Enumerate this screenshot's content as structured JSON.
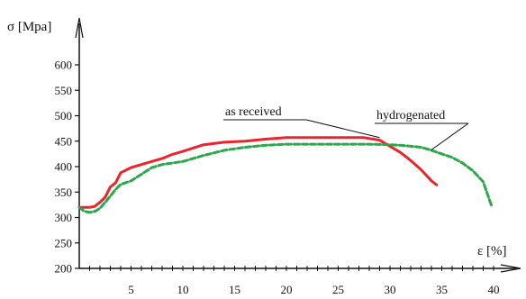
{
  "chart_data": {
    "type": "line",
    "title": "",
    "xlabel": "ε [%]",
    "ylabel": "σ [Mpa]",
    "xlim": [
      0,
      40
    ],
    "ylim": [
      200,
      630
    ],
    "x_ticks": [
      5,
      10,
      15,
      20,
      25,
      30,
      35,
      40
    ],
    "y_ticks": [
      200,
      250,
      300,
      350,
      400,
      450,
      500,
      550,
      600
    ],
    "grid": false,
    "legend": "none",
    "series": [
      {
        "name": "as received",
        "color": "#e8262b",
        "dash": "solid",
        "x": [
          0,
          1,
          1.5,
          2,
          2.5,
          3,
          3.5,
          4,
          5,
          6,
          7,
          8,
          9,
          10,
          12,
          14,
          16,
          18,
          20,
          22,
          24,
          26,
          27.5,
          29,
          30,
          31,
          32,
          33,
          34,
          34.5
        ],
        "y": [
          320,
          320,
          322,
          330,
          340,
          360,
          368,
          388,
          398,
          404,
          410,
          416,
          424,
          430,
          443,
          448,
          450,
          454,
          457,
          457,
          457,
          457,
          457,
          452,
          440,
          428,
          412,
          394,
          372,
          364
        ]
      },
      {
        "name": "hydrogenated",
        "color": "#2aa84a",
        "dash": "dashed",
        "x": [
          0,
          0.5,
          1,
          1.5,
          2,
          2.5,
          3,
          3.5,
          4,
          5,
          6,
          7,
          8,
          10,
          12,
          14,
          16,
          18,
          20,
          22,
          24,
          26,
          28,
          30,
          31,
          32,
          33,
          34,
          35,
          36,
          37,
          38,
          39,
          39.8
        ],
        "y": [
          320,
          312,
          310,
          312,
          318,
          330,
          342,
          355,
          365,
          372,
          385,
          398,
          404,
          410,
          422,
          432,
          438,
          442,
          444,
          444,
          444,
          444,
          444,
          443,
          442,
          440,
          438,
          432,
          425,
          418,
          407,
          392,
          370,
          323
        ]
      }
    ],
    "annotations": [
      {
        "text": "as received",
        "series": "as received",
        "arrow_to_x": 29.0,
        "arrow_to_y": 457
      },
      {
        "text": "hydrogenated",
        "series": "hydrogenated",
        "arrow_to_x": 34.0,
        "arrow_to_y": 433
      }
    ]
  }
}
